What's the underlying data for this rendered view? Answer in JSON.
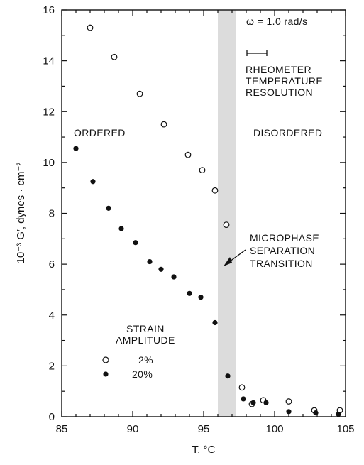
{
  "chart_data": {
    "type": "scatter",
    "xlabel": "T, °C",
    "ylabel": "10⁻³ G′, dynes · cm⁻²",
    "xlim": [
      85,
      105
    ],
    "ylim": [
      0,
      16
    ],
    "x_ticks": [
      "85",
      "90",
      "95",
      "100",
      "105"
    ],
    "y_ticks": [
      "0",
      "2",
      "4",
      "6",
      "8",
      "10",
      "12",
      "14",
      "16"
    ],
    "grid": false,
    "legend": {
      "title_lines": [
        "STRAIN",
        "AMPLITUDE"
      ],
      "entries": [
        {
          "marker": "open-circle",
          "label": "2%"
        },
        {
          "marker": "filled-circle",
          "label": "20%"
        }
      ],
      "placement": "lower-left"
    },
    "series": [
      {
        "name": "2%",
        "marker": "open-circle",
        "x": [
          87.0,
          88.7,
          90.5,
          92.2,
          93.9,
          94.9,
          95.8,
          96.6,
          97.7,
          98.4,
          99.2,
          101.0,
          102.8,
          104.6
        ],
        "y": [
          15.3,
          14.15,
          12.7,
          11.5,
          10.3,
          9.7,
          8.9,
          7.55,
          1.15,
          0.5,
          0.65,
          0.6,
          0.25,
          0.25
        ]
      },
      {
        "name": "20%",
        "marker": "filled-circle",
        "x": [
          86.0,
          87.2,
          88.3,
          89.2,
          90.2,
          91.2,
          92.0,
          92.9,
          94.0,
          94.8,
          95.8,
          96.7,
          97.8,
          98.5,
          99.4,
          101.0,
          102.9,
          104.5
        ],
        "y": [
          10.55,
          9.25,
          8.2,
          7.4,
          6.85,
          6.1,
          5.8,
          5.5,
          4.85,
          4.7,
          3.7,
          1.6,
          0.7,
          0.55,
          0.55,
          0.2,
          0.15,
          0.1
        ]
      }
    ],
    "shaded_band": {
      "x0": 96.0,
      "x1": 97.3,
      "label_lines": [
        "MICROPHASE",
        "SEPARATION",
        "TRANSITION"
      ]
    },
    "annotations": {
      "omega": "ω = 1.0 rad/s",
      "resolution_lines": [
        "RHEOMETER",
        "TEMPERATURE",
        "RESOLUTION"
      ],
      "ordered": "ORDERED",
      "disordered": "DISORDERED"
    }
  },
  "colors": {
    "band": "#dcdcdc",
    "ink": "#111111",
    "background": "#ffffff"
  }
}
